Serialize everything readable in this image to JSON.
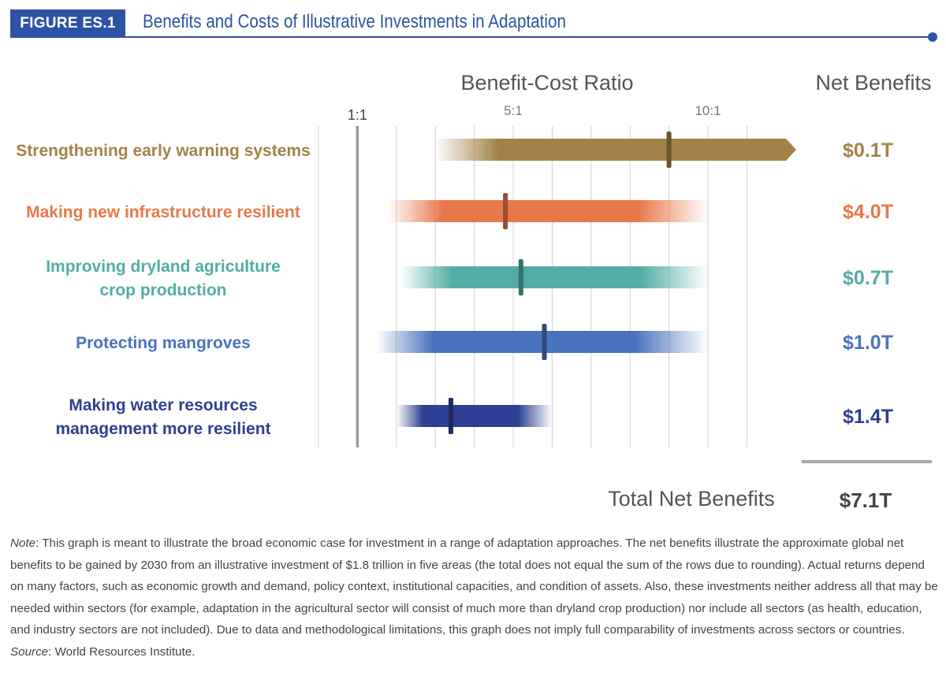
{
  "header": {
    "badge": "FIGURE ES.1",
    "title": "Benefits and Costs of Illustrative Investments in Adaptation"
  },
  "chart_data": {
    "type": "range-bar",
    "title": "Benefit-Cost Ratio",
    "net_benefits_heading": "Net Benefits",
    "x_axis": {
      "ticks": [
        1,
        5,
        10
      ],
      "tick_labels": [
        "1:1",
        "5:1",
        "10:1"
      ],
      "range": [
        0,
        11.5
      ],
      "grid_step": 1
    },
    "rows": [
      {
        "label_lines": [
          "Strengthening early warning systems"
        ],
        "color": "#a28249",
        "min": 3,
        "max": 12,
        "point": 9,
        "arrow": true,
        "net_benefit": "$0.1T"
      },
      {
        "label_lines": [
          "Making new infrastructure resilient"
        ],
        "color": "#e8784a",
        "min": 1.8,
        "max": 10,
        "point": 4.8,
        "arrow": false,
        "net_benefit": "$4.0T"
      },
      {
        "label_lines": [
          "Improving dryland agriculture",
          "crop production"
        ],
        "color": "#52ada5",
        "min": 2.1,
        "max": 10,
        "point": 5.2,
        "arrow": false,
        "net_benefit": "$0.7T"
      },
      {
        "label_lines": [
          "Protecting mangroves"
        ],
        "color": "#4a73bd",
        "min": 1.5,
        "max": 10,
        "point": 5.8,
        "arrow": false,
        "net_benefit": "$1.0T"
      },
      {
        "label_lines": [
          "Making water resources",
          "management more resilient"
        ],
        "color": "#2f3f91",
        "min": 2,
        "max": 6,
        "point": 3.4,
        "arrow": false,
        "net_benefit": "$1.4T"
      }
    ],
    "total_label": "Total Net Benefits",
    "total_value": "$7.1T"
  },
  "note": {
    "note_label": "Note",
    "text": ": This graph is meant to illustrate the broad economic case for investment in a range of adaptation approaches. The net benefits illustrate the approximate global net benefits to be gained by 2030 from an illustrative investment of $1.8 trillion in five areas (the total does not equal the sum of the rows due to rounding). Actual returns depend on many factors, such as economic growth and demand, policy context, institutional capacities, and condition of assets. Also, these investments neither address all that may be needed within sectors (for example, adaptation in the agricultural sector will consist of much more than dryland crop production) nor include all sectors (as health, education, and industry sectors are not included). Due to data and methodological limitations, this graph does not imply full comparability of investments across sectors or countries.",
    "source_label": "Source",
    "source_text": ": World Resources Institute."
  }
}
